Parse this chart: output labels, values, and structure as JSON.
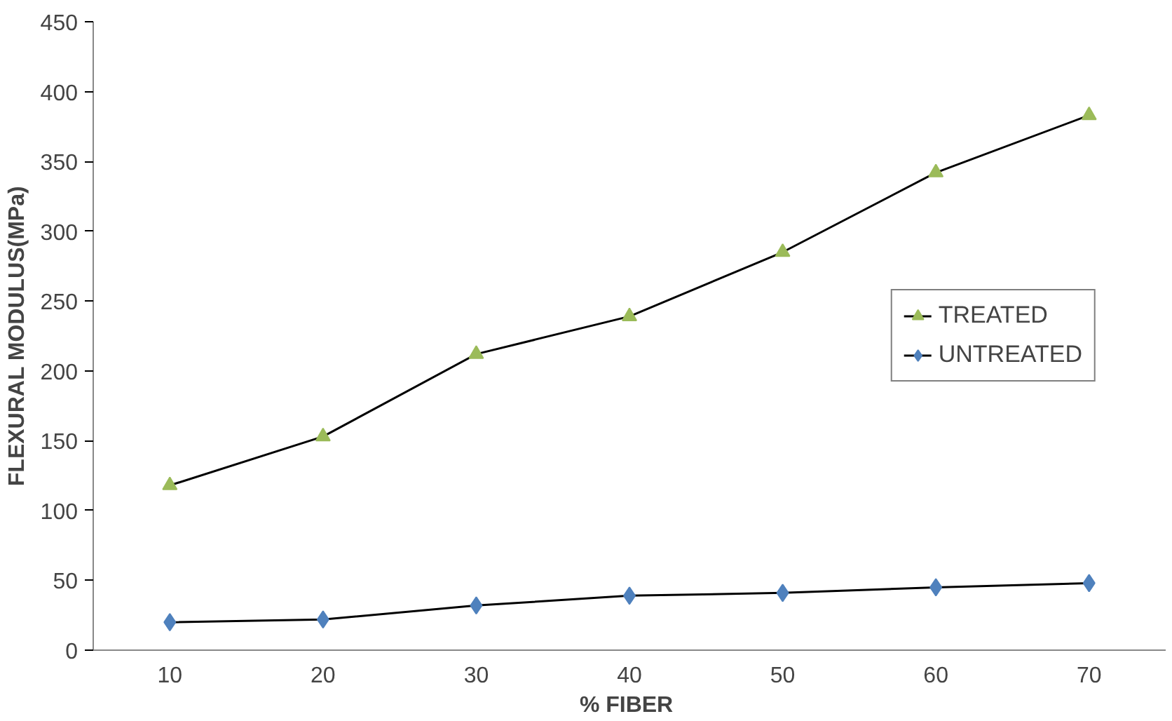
{
  "chart_data": {
    "type": "line",
    "xlabel": "%  FIBER",
    "ylabel": "FLEXURAL MODULUS(MPa)",
    "categories": [
      "10",
      "20",
      "30",
      "40",
      "50",
      "60",
      "70"
    ],
    "series": [
      {
        "name": "TREATED",
        "color": "#9bbb59",
        "marker": "triangle",
        "values": [
          118,
          153,
          212,
          239,
          285,
          342,
          383
        ]
      },
      {
        "name": "UNTREATED",
        "color": "#4f81bd",
        "marker": "diamond",
        "values": [
          20,
          22,
          32,
          39,
          41,
          45,
          48
        ]
      }
    ],
    "ylim": [
      0,
      450
    ],
    "yticks": [
      0,
      50,
      100,
      150,
      200,
      250,
      300,
      350,
      400,
      450
    ],
    "legend": "right",
    "grid": false,
    "line_style": "solid"
  }
}
